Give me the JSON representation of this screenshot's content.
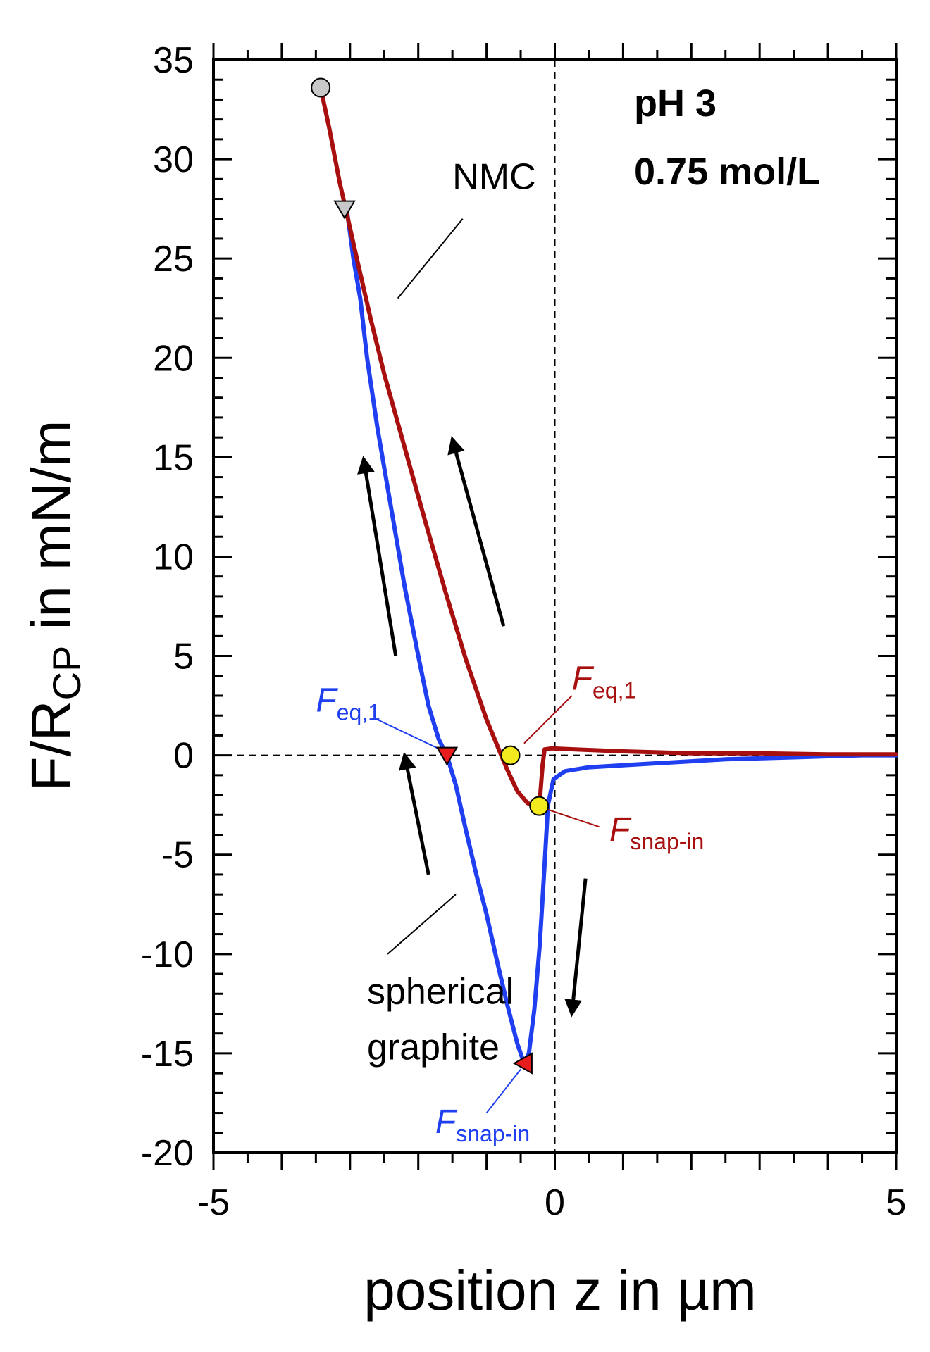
{
  "chart_data": {
    "type": "line",
    "title": "",
    "xlabel": "position z in µm",
    "ylabel_parts": {
      "main": "F/R",
      "sub": "CP",
      "tail": " in mN/m"
    },
    "xlim": [
      -5,
      5
    ],
    "ylim": [
      -20,
      35
    ],
    "x_ticks": [
      -5,
      0,
      5
    ],
    "y_ticks": [
      35,
      30,
      25,
      20,
      15,
      10,
      5,
      0,
      -5,
      -10,
      -15,
      -20
    ],
    "x_tick_labels": [
      "-5",
      "0",
      "5"
    ],
    "y_tick_labels": [
      "35",
      "30",
      "25",
      "20",
      "15",
      "10",
      "5",
      "0",
      "-5",
      "-10",
      "-15",
      "-20"
    ],
    "condition_line1": "pH 3",
    "condition_line2": "0.75 mol/L",
    "series": [
      {
        "name": "NMC",
        "color": "#a80f0f",
        "points": [
          [
            -3.43,
            33.6
          ],
          [
            -3.3,
            31.5
          ],
          [
            -3.15,
            28.8
          ],
          [
            -3.05,
            27.3
          ],
          [
            -2.9,
            25.0
          ],
          [
            -2.7,
            22.0
          ],
          [
            -2.5,
            19.2
          ],
          [
            -2.2,
            15.5
          ],
          [
            -1.9,
            11.8
          ],
          [
            -1.6,
            8.2
          ],
          [
            -1.3,
            4.8
          ],
          [
            -1.0,
            1.8
          ],
          [
            -0.82,
            0.3
          ],
          [
            -0.7,
            -0.7
          ],
          [
            -0.55,
            -1.8
          ],
          [
            -0.4,
            -2.4
          ],
          [
            -0.28,
            -2.6
          ],
          [
            -0.22,
            -2.3
          ],
          [
            -0.18,
            -0.5
          ],
          [
            -0.15,
            0.3
          ],
          [
            -0.05,
            0.35
          ],
          [
            0.3,
            0.3
          ],
          [
            1.0,
            0.2
          ],
          [
            2.0,
            0.1
          ],
          [
            3.0,
            0.1
          ],
          [
            4.0,
            0.05
          ],
          [
            5.0,
            0.05
          ]
        ]
      },
      {
        "name": "spherical graphite",
        "color": "#1f3ff0",
        "points": [
          [
            -3.05,
            27.5
          ],
          [
            -3.0,
            26.3
          ],
          [
            -2.95,
            25.0
          ],
          [
            -2.85,
            23.0
          ],
          [
            -2.75,
            20.0
          ],
          [
            -2.6,
            16.5
          ],
          [
            -2.4,
            12.5
          ],
          [
            -2.2,
            8.5
          ],
          [
            -2.0,
            5.0
          ],
          [
            -1.85,
            2.5
          ],
          [
            -1.7,
            0.8
          ],
          [
            -1.58,
            0.0
          ],
          [
            -1.45,
            -1.5
          ],
          [
            -1.3,
            -3.8
          ],
          [
            -1.15,
            -6.0
          ],
          [
            -1.0,
            -8.0
          ],
          [
            -0.85,
            -10.3
          ],
          [
            -0.7,
            -12.5
          ],
          [
            -0.55,
            -14.5
          ],
          [
            -0.45,
            -15.5
          ],
          [
            -0.38,
            -15.0
          ],
          [
            -0.3,
            -12.8
          ],
          [
            -0.22,
            -9.5
          ],
          [
            -0.15,
            -5.5
          ],
          [
            -0.1,
            -2.5
          ],
          [
            -0.02,
            -1.2
          ],
          [
            0.15,
            -0.8
          ],
          [
            0.5,
            -0.6
          ],
          [
            1.0,
            -0.5
          ],
          [
            1.5,
            -0.4
          ],
          [
            2.0,
            -0.3
          ],
          [
            2.5,
            -0.2
          ],
          [
            3.0,
            -0.15
          ],
          [
            3.5,
            -0.1
          ],
          [
            4.0,
            -0.05
          ],
          [
            4.5,
            0.0
          ],
          [
            5.0,
            0.0
          ]
        ]
      }
    ],
    "markers": [
      {
        "name": "nmc-start-marker",
        "x": -3.43,
        "y": 33.6,
        "shape": "circle",
        "fill": "#c8c8c8"
      },
      {
        "name": "graphite-start-marker",
        "x": -3.08,
        "y": 27.5,
        "shape": "triangle-down",
        "fill": "#c8c8c8"
      },
      {
        "name": "nmc-feq-marker",
        "x": -0.65,
        "y": 0.0,
        "shape": "circle",
        "fill": "#f2ea1c"
      },
      {
        "name": "nmc-snap-marker",
        "x": -0.23,
        "y": -2.55,
        "shape": "circle",
        "fill": "#f2ea1c"
      },
      {
        "name": "graphite-feq-marker",
        "x": -1.58,
        "y": 0.0,
        "shape": "triangle-down",
        "fill": "#e81c1c"
      },
      {
        "name": "graphite-snap-marker",
        "x": -0.45,
        "y": -15.5,
        "shape": "triangle-left",
        "fill": "#e81c1c"
      }
    ],
    "annotations": [
      {
        "name": "label-nmc",
        "text": "NMC",
        "x": -1.5,
        "y": 28.5,
        "color": "#000000",
        "size": 52
      },
      {
        "name": "label-graphite-1",
        "text": "spherical",
        "x": -2.75,
        "y": -12.5,
        "color": "#000000",
        "size": 52
      },
      {
        "name": "label-graphite-2",
        "text": "graphite",
        "x": -2.75,
        "y": -15.3,
        "color": "#000000",
        "size": 52
      }
    ],
    "sub_labels": [
      {
        "name": "label-graphite-feq",
        "main": "F",
        "sub": "eq,1",
        "x": -3.5,
        "y": 2.2,
        "color": "#1f3ff0"
      },
      {
        "name": "label-nmc-feq",
        "main": "F",
        "sub": "eq,1",
        "x": 0.25,
        "y": 3.3,
        "color": "#a80f0f"
      },
      {
        "name": "label-nmc-snap",
        "main": "F",
        "sub": "snap-in",
        "x": 0.8,
        "y": -4.3,
        "color": "#a80f0f"
      },
      {
        "name": "label-graphite-snap",
        "main": "F",
        "sub": "snap-in",
        "x": -1.75,
        "y": -19.0,
        "color": "#1f3ff0"
      }
    ],
    "leader_lines": [
      {
        "name": "nmc-leader",
        "x1": -2.3,
        "y1": 23.0,
        "x2": -1.35,
        "y2": 27.0,
        "color": "#000000"
      },
      {
        "name": "graphite-leader",
        "x1": -2.45,
        "y1": -10.0,
        "x2": -1.45,
        "y2": -7.0,
        "color": "#000000"
      },
      {
        "name": "graphite-feq-leader",
        "x1": -2.6,
        "y1": 1.8,
        "x2": -1.65,
        "y2": 0.25,
        "color": "#1f3ff0"
      },
      {
        "name": "nmc-feq-leader",
        "x1": -0.45,
        "y1": 0.6,
        "x2": 0.25,
        "y2": 3.0,
        "color": "#a80f0f"
      },
      {
        "name": "nmc-snap-leader",
        "x1": -0.13,
        "y1": -2.7,
        "x2": 0.65,
        "y2": -3.6,
        "color": "#a80f0f"
      },
      {
        "name": "graphite-snap-leader",
        "x1": -0.5,
        "y1": -15.8,
        "x2": -1.0,
        "y2": -18.0,
        "color": "#1f3ff0"
      }
    ],
    "arrows": [
      {
        "name": "arrow-graphite-lower",
        "x1": -1.85,
        "y1": -6.0,
        "x2": -2.2,
        "y2": 0.0
      },
      {
        "name": "arrow-graphite-upper",
        "x1": -2.33,
        "y1": 5.0,
        "x2": -2.8,
        "y2": 14.9
      },
      {
        "name": "arrow-nmc",
        "x1": -0.75,
        "y1": 6.5,
        "x2": -1.5,
        "y2": 15.9
      },
      {
        "name": "arrow-retract",
        "x1": 0.45,
        "y1": -6.2,
        "x2": 0.25,
        "y2": -13.0
      }
    ]
  }
}
